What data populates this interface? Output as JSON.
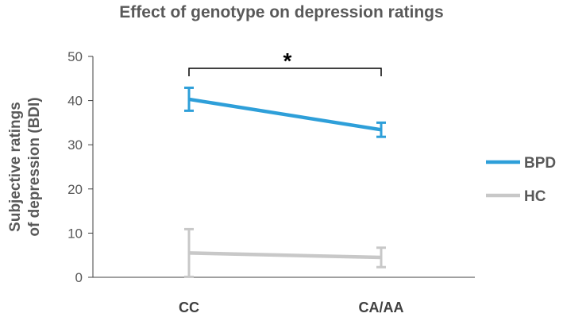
{
  "chart_data": {
    "type": "line",
    "title": "Effect of genotype on depression ratings",
    "ylabel_lines": [
      "Subjective ratings",
      "of depression (BDI)"
    ],
    "categories": [
      "CC",
      "CA/AA"
    ],
    "ylim": [
      0,
      50
    ],
    "yticks": [
      0,
      10,
      20,
      30,
      40,
      50
    ],
    "grid": false,
    "legend_position": "right",
    "series": [
      {
        "name": "BPD",
        "color": "#2e9fd9",
        "values": [
          40.3,
          33.4
        ],
        "errors": [
          2.6,
          1.6
        ]
      },
      {
        "name": "HC",
        "color": "#c8c8c8",
        "values": [
          5.5,
          4.5
        ],
        "errors": [
          5.4,
          2.2
        ]
      }
    ],
    "annotation": {
      "text": "*",
      "between": [
        "CC",
        "CA/AA"
      ]
    }
  }
}
